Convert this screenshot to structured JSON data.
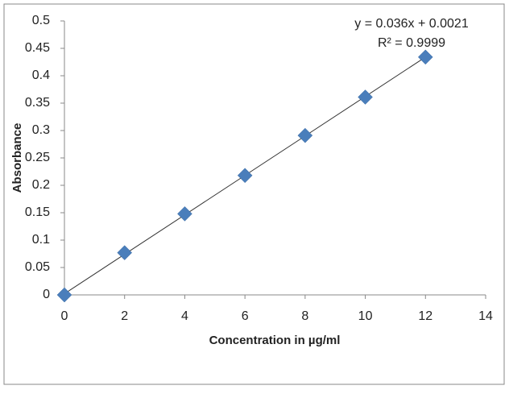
{
  "chart_data": {
    "type": "scatter",
    "x_label": "Concentration in µg/ml",
    "y_label": "Absorbance",
    "series": [
      {
        "color": "#4a7ebb",
        "x": [
          0,
          2,
          4,
          6,
          8,
          10,
          12
        ],
        "values": [
          0,
          0.077,
          0.148,
          0.218,
          0.291,
          0.361,
          0.434
        ]
      }
    ],
    "trendline": {
      "slope": 0.036,
      "intercept": 0.0021,
      "color": "#333333",
      "equation_label": "y = 0.036x + 0.0021",
      "r2_label": "R² = 0.9999"
    },
    "xlim": [
      0,
      14
    ],
    "xticks": [
      0,
      2,
      4,
      6,
      8,
      10,
      12,
      14
    ],
    "ylim": [
      0,
      0.5
    ],
    "yticks": [
      0,
      0.05,
      0.1,
      0.15,
      0.2,
      0.25,
      0.3,
      0.35,
      0.4,
      0.45,
      0.5
    ],
    "grid": false
  }
}
